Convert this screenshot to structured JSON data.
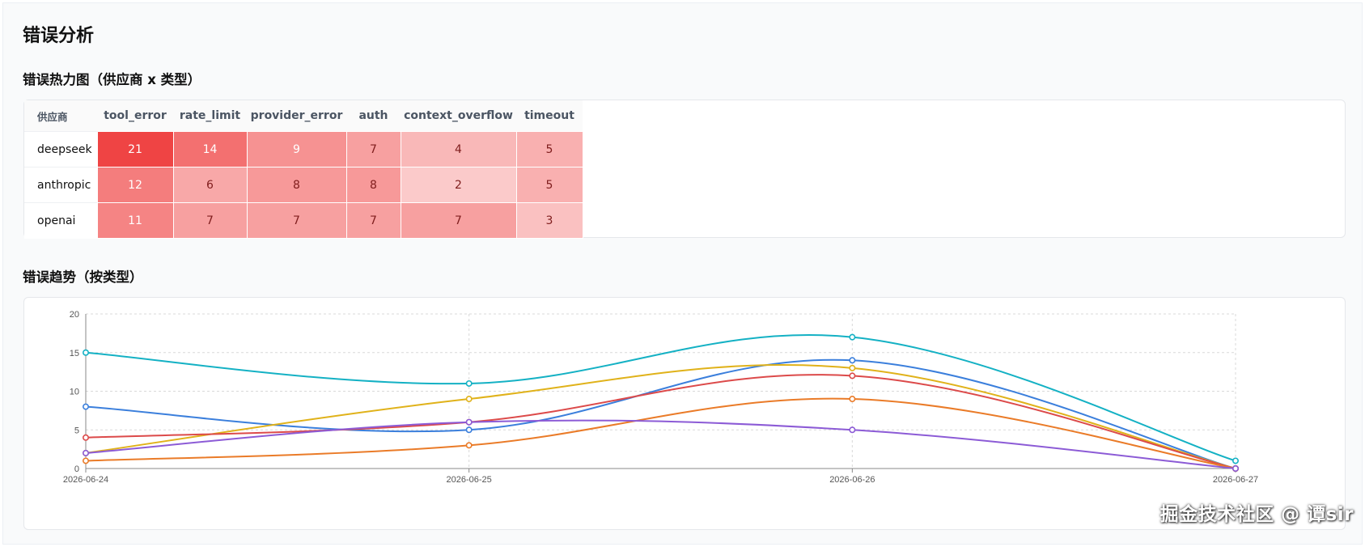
{
  "page": {
    "title": "错误分析",
    "heatmap_title": "错误热力图（供应商 x 类型）",
    "trend_title": "错误趋势（按类型）",
    "watermark": "掘金技术社区 @ 谭sir"
  },
  "chart_data": [
    {
      "type": "heatmap",
      "corner_label": "供应商",
      "columns": [
        "tool_error",
        "rate_limit",
        "provider_error",
        "auth",
        "context_overflow",
        "timeout"
      ],
      "rows": [
        {
          "provider": "deepseek",
          "values": [
            21,
            14,
            9,
            7,
            4,
            5
          ]
        },
        {
          "provider": "anthropic",
          "values": [
            12,
            6,
            8,
            8,
            2,
            5
          ]
        },
        {
          "provider": "openai",
          "values": [
            11,
            7,
            7,
            7,
            7,
            3
          ]
        }
      ],
      "color_low": "#fde2e2",
      "color_high": "#ef4444"
    },
    {
      "type": "line",
      "x": [
        "2026-06-24",
        "2026-06-25",
        "2026-06-26",
        "2026-06-27"
      ],
      "ylim": [
        0,
        20
      ],
      "yticks": [
        0,
        5,
        10,
        15,
        20
      ],
      "grid": true,
      "series": [
        {
          "color": "#14b1c4",
          "values": [
            15,
            11,
            17,
            1
          ]
        },
        {
          "color": "#3b7fdc",
          "values": [
            8,
            5,
            14,
            0
          ]
        },
        {
          "color": "#e0b21a",
          "values": [
            2,
            9,
            13,
            0
          ]
        },
        {
          "color": "#dc4a4a",
          "values": [
            4,
            6,
            12,
            0
          ]
        },
        {
          "color": "#ea7b28",
          "values": [
            1,
            3,
            9,
            0
          ]
        },
        {
          "color": "#8c5bd6",
          "values": [
            2,
            6,
            5,
            0
          ]
        }
      ]
    }
  ]
}
